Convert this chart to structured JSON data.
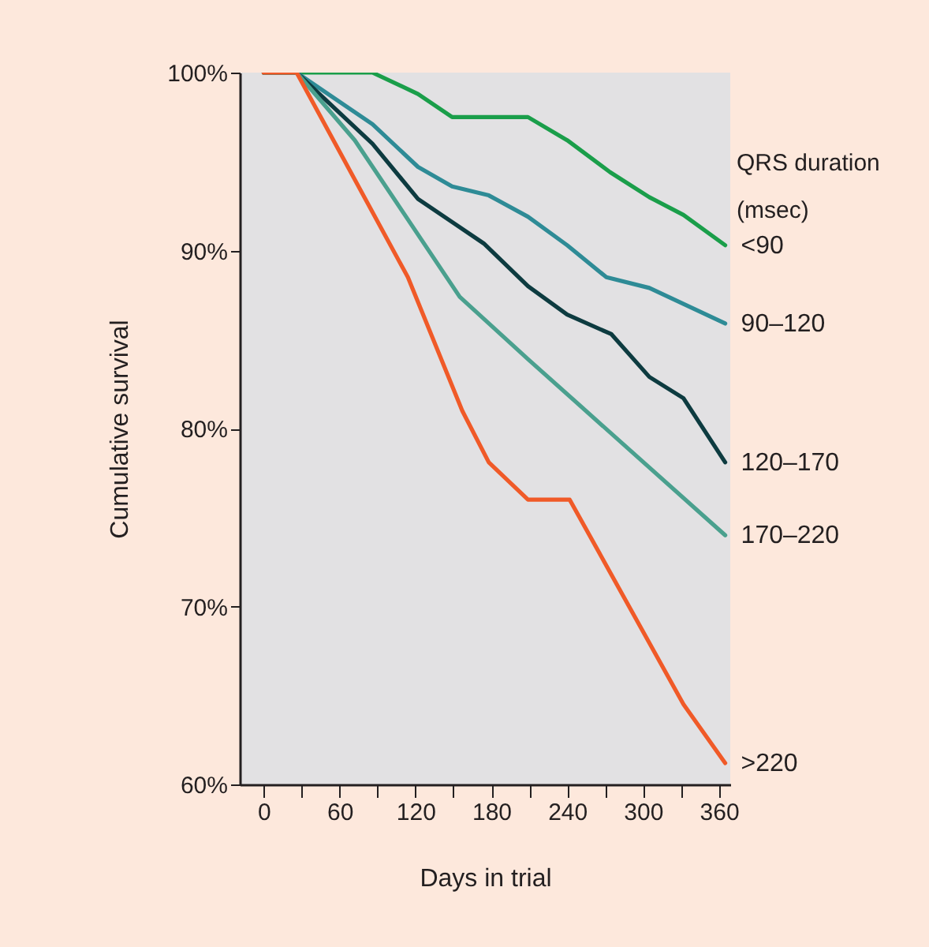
{
  "chart_data": {
    "type": "line",
    "xlabel": "Days in trial",
    "ylabel": "Cumulative survival",
    "legend_title": "QRS duration\n(msec)",
    "xlim": [
      -19,
      369
    ],
    "ylim": [
      60,
      100
    ],
    "xticks": [
      0,
      {
        "value": 30,
        "label": null
      },
      60,
      {
        "value": 90,
        "label": null
      },
      120,
      {
        "value": 150,
        "label": null
      },
      180,
      {
        "value": 210,
        "label": null
      },
      240,
      {
        "value": 270,
        "label": null
      },
      300,
      {
        "value": 330,
        "label": null
      },
      360
    ],
    "yticks": [
      {
        "value": 60,
        "label": "60%"
      },
      {
        "value": 70,
        "label": "70%"
      },
      {
        "value": 80,
        "label": "80%"
      },
      {
        "value": 90,
        "label": "90%"
      },
      {
        "value": 100,
        "label": "100%"
      }
    ],
    "grid": false,
    "legend": false,
    "marker": "none",
    "line_style": "solid",
    "series": [
      {
        "name": "<90",
        "color": "#1a9e4a",
        "x": [
          0,
          86,
          122,
          149,
          209,
          240,
          274,
          305,
          332,
          365
        ],
        "values": [
          100,
          100,
          98.8,
          97.5,
          97.5,
          96.2,
          94.4,
          93.0,
          92.0,
          90.3
        ]
      },
      {
        "name": "90–120",
        "color": "#2e8b96",
        "x": [
          0,
          26,
          86,
          122,
          149,
          178,
          209,
          240,
          271,
          305,
          332,
          365
        ],
        "values": [
          100,
          100,
          97.1,
          94.7,
          93.6,
          93.1,
          91.9,
          90.3,
          88.5,
          87.9,
          87.0,
          85.9
        ]
      },
      {
        "name": "120–170",
        "color": "#0d3b40",
        "x": [
          0,
          26,
          86,
          122,
          149,
          174,
          209,
          240,
          275,
          305,
          332,
          365
        ],
        "values": [
          100,
          100,
          96.0,
          92.9,
          91.6,
          90.4,
          88.0,
          86.4,
          85.3,
          82.9,
          81.7,
          78.1
        ]
      },
      {
        "name": "170–220",
        "color": "#4aa08e",
        "x": [
          0,
          26,
          72,
          155,
          209,
          365
        ],
        "values": [
          100,
          100,
          96.2,
          87.4,
          83.9,
          74.0
        ]
      },
      {
        "name": ">220",
        "color": "#f05a28",
        "x": [
          0,
          26,
          114,
          157,
          178,
          209,
          242,
          332,
          365
        ],
        "values": [
          100,
          100,
          88.5,
          81.0,
          78.1,
          76.0,
          76.0,
          64.5,
          61.2
        ]
      }
    ]
  }
}
